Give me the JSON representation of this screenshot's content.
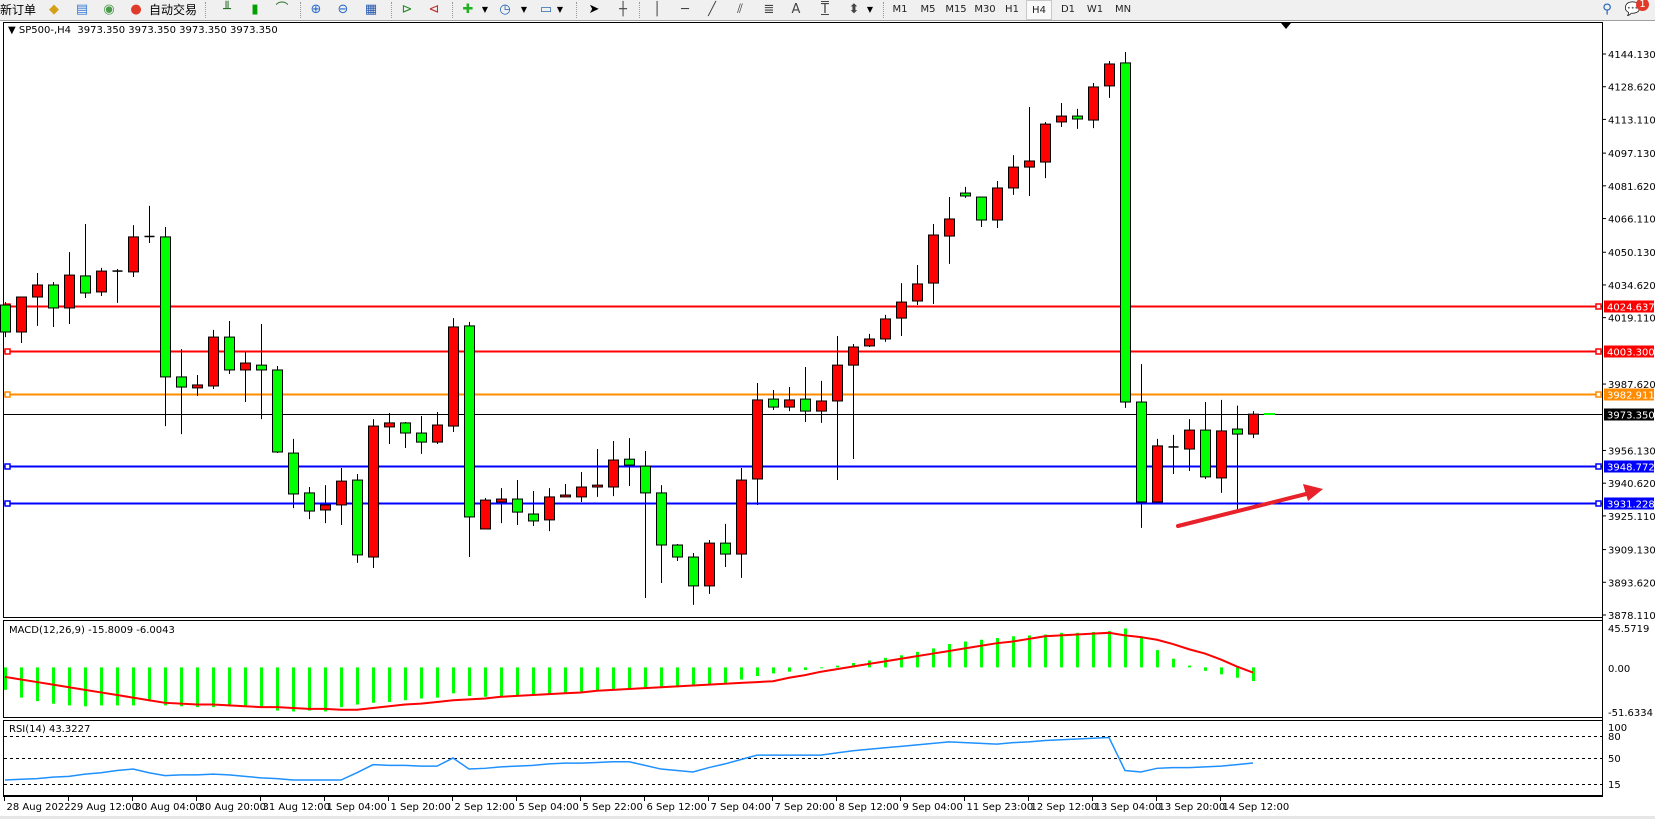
{
  "toolbar": {
    "new_order": "新订单",
    "auto_trading": "自动交易",
    "timeframes": [
      "M1",
      "M5",
      "M15",
      "M30",
      "H1",
      "H4",
      "D1",
      "W1",
      "MN"
    ],
    "active_timeframe": "H4",
    "notification_count": "1",
    "draw_text_tool": "A",
    "text_label_tool": "T"
  },
  "chart": {
    "symbol_period": "SP500-,H4",
    "ohlc_readout": "3973.350 3973.350 3973.350 3973.350",
    "colors": {
      "bull": "#ff0000",
      "bear": "#00ff00",
      "outline": "#000000",
      "background": "#ffffff"
    }
  },
  "macd": {
    "label": "MACD(12,26,9) -15.8009 -6.0043",
    "axis": [
      "45.5719",
      "0.00",
      "-51.6334"
    ]
  },
  "rsi": {
    "label": "RSI(14) 43.3227",
    "axis": [
      "100",
      "80",
      "50",
      "15"
    ]
  },
  "chart_data": {
    "type": "candlestick",
    "ylim": [
      3878.11,
      4144.13
    ],
    "price_ticks": [
      "4144.130",
      "4128.620",
      "4113.110",
      "4097.130",
      "4081.620",
      "4066.110",
      "4050.130",
      "4034.620",
      "4019.110",
      "3987.620",
      "3956.130",
      "3940.620",
      "3925.110",
      "3909.130",
      "3893.620",
      "3878.110"
    ],
    "time_labels": [
      "28 Aug 2022",
      "29 Aug 12:00",
      "30 Aug 04:00",
      "30 Aug 20:00",
      "31 Aug 12:00",
      "1 Sep 04:00",
      "1 Sep 20:00",
      "2 Sep 12:00",
      "5 Sep 04:00",
      "5 Sep 22:00",
      "6 Sep 12:00",
      "7 Sep 04:00",
      "7 Sep 20:00",
      "8 Sep 12:00",
      "9 Sep 04:00",
      "11 Sep 23:00",
      "12 Sep 12:00",
      "13 Sep 04:00",
      "13 Sep 20:00",
      "14 Sep 12:00"
    ],
    "levels": [
      {
        "price": 4024.637,
        "label": "4024.637",
        "color": "#ff0000"
      },
      {
        "price": 4003.3,
        "label": "4003.300",
        "color": "#ff0000"
      },
      {
        "price": 3982.911,
        "label": "3982.911",
        "color": "#ff8c00"
      },
      {
        "price": 3948.772,
        "label": "3948.772",
        "color": "#0000ff"
      },
      {
        "price": 3931.228,
        "label": "3931.228",
        "color": "#0000ff"
      }
    ],
    "bid": {
      "price": 3973.35,
      "label": "3973.350",
      "color": "#000000"
    },
    "candles_ohlc": [
      [
        4025.1,
        4026.5,
        4009.9,
        4012.3
      ],
      [
        4012.3,
        4028.9,
        4007.1,
        4028.9
      ],
      [
        4028.9,
        4040.3,
        4015.2,
        4034.6
      ],
      [
        4034.6,
        4036.0,
        4014.7,
        4023.7
      ],
      [
        4023.7,
        4050.2,
        4016.1,
        4039.3
      ],
      [
        4038.9,
        4063.5,
        4028.4,
        4030.8
      ],
      [
        4031.3,
        4042.7,
        4029.4,
        4041.2
      ],
      [
        4041.2,
        4042.2,
        4026.1,
        4041.2
      ],
      [
        4040.8,
        4063.0,
        4038.4,
        4057.4
      ],
      [
        4057.4,
        4072.1,
        4054.5,
        4057.6
      ],
      [
        4057.4,
        4062.1,
        3967.7,
        3991.0
      ],
      [
        3991.0,
        4004.2,
        3963.9,
        3986.2
      ],
      [
        3985.8,
        3991.9,
        3982.0,
        3987.2
      ],
      [
        3986.7,
        4013.3,
        3985.3,
        4009.9
      ],
      [
        4009.9,
        4017.5,
        3992.4,
        3994.3
      ],
      [
        3994.3,
        4002.8,
        3979.1,
        3997.6
      ],
      [
        3996.6,
        4016.1,
        3971.0,
        3994.3
      ],
      [
        3994.3,
        3996.2,
        3954.9,
        3955.4
      ],
      [
        3954.9,
        3961.6,
        3928.8,
        3935.5
      ],
      [
        3936.0,
        3938.8,
        3923.6,
        3927.4
      ],
      [
        3927.9,
        3939.7,
        3921.7,
        3930.3
      ],
      [
        3930.3,
        3947.8,
        3920.8,
        3941.6
      ],
      [
        3942.1,
        3945.0,
        3902.8,
        3906.6
      ],
      [
        3905.6,
        3971.0,
        3900.4,
        3967.7
      ],
      [
        3967.3,
        3973.9,
        3959.2,
        3969.2
      ],
      [
        3969.2,
        3969.6,
        3957.3,
        3964.4
      ],
      [
        3964.4,
        3972.5,
        3954.5,
        3960.1
      ],
      [
        3960.1,
        3974.4,
        3959.2,
        3968.2
      ],
      [
        3967.7,
        4018.9,
        3964.9,
        4014.7
      ],
      [
        4015.2,
        4017.1,
        3905.6,
        3924.6
      ],
      [
        3918.9,
        3933.6,
        3918.9,
        3932.6
      ],
      [
        3931.7,
        3938.3,
        3921.7,
        3933.1
      ],
      [
        3933.1,
        3942.1,
        3920.8,
        3926.9
      ],
      [
        3926.0,
        3936.9,
        3920.3,
        3922.7
      ],
      [
        3923.2,
        3938.3,
        3917.9,
        3934.1
      ],
      [
        3934.1,
        3940.2,
        3934.1,
        3935.0
      ],
      [
        3934.1,
        3945.9,
        3931.7,
        3938.8
      ],
      [
        3938.8,
        3956.8,
        3934.1,
        3939.7
      ],
      [
        3938.8,
        3960.6,
        3934.5,
        3951.6
      ],
      [
        3952.0,
        3962.0,
        3939.3,
        3949.2
      ],
      [
        3948.7,
        3955.9,
        3886.2,
        3936.0
      ],
      [
        3936.0,
        3939.7,
        3893.3,
        3911.3
      ],
      [
        3911.3,
        3911.8,
        3903.7,
        3905.6
      ],
      [
        3905.6,
        3907.5,
        3882.9,
        3891.9
      ],
      [
        3891.9,
        3913.7,
        3888.1,
        3912.2
      ],
      [
        3912.2,
        3921.3,
        3900.9,
        3907.0
      ],
      [
        3907.0,
        3947.8,
        3895.7,
        3942.1
      ],
      [
        3942.6,
        3988.1,
        3930.3,
        3980.1
      ],
      [
        3980.5,
        3984.8,
        3975.3,
        3976.7
      ],
      [
        3976.7,
        3986.2,
        3974.8,
        3980.1
      ],
      [
        3980.5,
        3995.7,
        3969.6,
        3974.8
      ],
      [
        3974.8,
        3989.1,
        3969.2,
        3979.6
      ],
      [
        3979.6,
        4010.4,
        3942.1,
        3996.6
      ],
      [
        3996.6,
        4006.6,
        3952.1,
        4005.2
      ],
      [
        4005.7,
        4011.4,
        4005.2,
        4009.0
      ],
      [
        4009.0,
        4020.4,
        4007.6,
        4018.5
      ],
      [
        4018.9,
        4035.5,
        4010.4,
        4026.5
      ],
      [
        4027.0,
        4044.1,
        4025.1,
        4035.1
      ],
      [
        4035.5,
        4063.5,
        4025.6,
        4058.3
      ],
      [
        4057.8,
        4076.3,
        4044.6,
        4065.9
      ],
      [
        4078.2,
        4081.1,
        4075.9,
        4076.8
      ],
      [
        4076.3,
        4076.3,
        4062.1,
        4065.4
      ],
      [
        4065.4,
        4083.9,
        4061.6,
        4080.6
      ],
      [
        4080.6,
        4096.2,
        4077.3,
        4090.5
      ],
      [
        4090.5,
        4119.0,
        4076.8,
        4093.4
      ],
      [
        4092.9,
        4111.9,
        4085.3,
        4110.9
      ],
      [
        4111.9,
        4120.9,
        4109.5,
        4114.7
      ],
      [
        4114.7,
        4118.1,
        4108.6,
        4113.3
      ],
      [
        4112.8,
        4130.4,
        4109.0,
        4128.5
      ],
      [
        4129.0,
        4140.8,
        4123.3,
        4139.4
      ],
      [
        4139.9,
        4145.1,
        3976.3,
        3979.1
      ],
      [
        3979.1,
        3997.1,
        3919.4,
        3931.7
      ],
      [
        3931.7,
        3961.6,
        3931.7,
        3958.3
      ],
      [
        3957.8,
        3963.5,
        3945.0,
        3957.3
      ],
      [
        3956.8,
        3971.0,
        3946.4,
        3965.8
      ],
      [
        3965.8,
        3979.1,
        3942.6,
        3943.6
      ],
      [
        3943.1,
        3980.1,
        3936.0,
        3965.4
      ],
      [
        3966.3,
        3977.4,
        3928.0,
        3963.9
      ],
      [
        3963.9,
        3974.8,
        3962.0,
        3973.35
      ]
    ],
    "macd_ylim": [
      -51.6334,
      45.5719
    ],
    "macd_histogram": [
      -26,
      -35,
      -39,
      -42,
      -44,
      -45,
      -44,
      -44,
      -44,
      -39,
      -44,
      -45,
      -46,
      -46,
      -45,
      -44,
      -46,
      -50,
      -51,
      -50,
      -51,
      -46,
      -43,
      -41,
      -40,
      -38,
      -36,
      -35,
      -30,
      -33,
      -34,
      -34,
      -33,
      -32,
      -31,
      -30,
      -28,
      -27,
      -25,
      -24,
      -24,
      -24,
      -23,
      -22,
      -20,
      -18,
      -14,
      -10,
      -7,
      -5,
      -3,
      -1,
      2,
      5,
      8,
      11,
      14,
      18,
      22,
      27,
      30,
      32,
      34,
      36,
      37,
      38,
      40,
      40,
      41,
      42,
      45,
      35,
      20,
      10,
      2,
      -4,
      -8,
      -12,
      -15.8009
    ],
    "macd_signal": [
      -11,
      -14,
      -17,
      -20,
      -23,
      -26,
      -29,
      -32,
      -35,
      -38,
      -41,
      -42,
      -43,
      -43,
      -44,
      -45,
      -46,
      -46,
      -47,
      -48,
      -48,
      -49,
      -49,
      -47,
      -45,
      -43,
      -42,
      -40,
      -38,
      -37,
      -36,
      -34,
      -33,
      -32,
      -31,
      -30,
      -29,
      -27,
      -26,
      -25,
      -24,
      -23,
      -22,
      -21,
      -20,
      -19,
      -18,
      -17,
      -16,
      -12,
      -9,
      -5,
      -2,
      1,
      4,
      7,
      10,
      13,
      16,
      19,
      22,
      25,
      28,
      30,
      33,
      36,
      37,
      38,
      39,
      40,
      37,
      35,
      32,
      27,
      21,
      16,
      9,
      1,
      -6.0043
    ],
    "rsi_levels": [
      80,
      50,
      15
    ],
    "rsi": [
      20,
      21,
      22,
      24,
      25,
      28,
      30,
      33,
      35,
      30,
      26,
      27,
      27,
      28,
      27,
      25,
      23,
      22,
      20,
      20,
      20,
      20,
      30,
      41,
      40,
      40,
      39,
      39,
      50,
      35,
      36,
      38,
      39,
      40,
      42,
      43,
      43,
      44,
      45,
      45,
      40,
      35,
      33,
      31,
      37,
      42,
      48,
      54,
      54,
      54,
      54,
      54,
      57,
      60,
      62,
      64,
      66,
      68,
      70,
      72,
      71,
      70,
      69,
      71,
      72,
      74,
      75,
      76,
      77,
      78,
      33,
      31,
      36,
      37,
      37,
      38,
      39,
      41,
      43.3227
    ],
    "colors": {
      "histogram": "#00ff00",
      "signal": "#ff0000",
      "rsi": "#1e90ff",
      "annotation_arrow": "#e8212b"
    }
  }
}
